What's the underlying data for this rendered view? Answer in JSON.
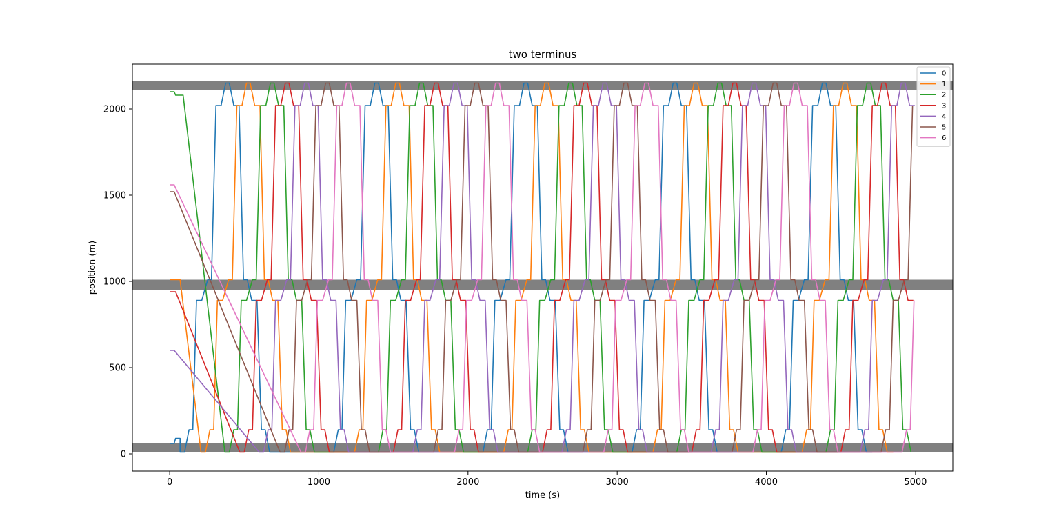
{
  "chart_data": {
    "type": "line",
    "title": "two terminus",
    "xlabel": "time (s)",
    "ylabel": "position (m)",
    "xlim": [
      -250,
      5250
    ],
    "ylim": [
      -100,
      2260
    ],
    "xticks": [
      0,
      1000,
      2000,
      3000,
      4000,
      5000
    ],
    "yticks": [
      0,
      500,
      1000,
      1500,
      2000
    ],
    "legend_location": "top-right",
    "grid": false,
    "bands": [
      {
        "y0": 10,
        "y1": 60,
        "color": "#808080"
      },
      {
        "y0": 950,
        "y1": 1010,
        "color": "#808080"
      },
      {
        "y0": 2110,
        "y1": 2160,
        "color": "#808080"
      }
    ],
    "trip": {
      "period": 1000,
      "stations": [
        10,
        140,
        890,
        1010,
        2020,
        2150
      ],
      "dwell": [
        [
          0,
          30
        ],
        [
          60,
          85
        ],
        [
          110,
          145
        ],
        [
          185,
          210
        ],
        [
          240,
          275
        ],
        [
          305,
          330
        ],
        [
          360,
          395
        ],
        [
          425,
          450
        ],
        [
          480,
          515
        ],
        [
          545,
          570
        ],
        [
          600,
          640
        ]
      ]
    },
    "series": [
      {
        "name": "0",
        "color": "#1f77b4",
        "phase": 0,
        "initial": [
          [
            0,
            60
          ],
          [
            30,
            60
          ],
          [
            40,
            90
          ],
          [
            70,
            90
          ]
        ]
      },
      {
        "name": "1",
        "color": "#ff7f0e",
        "phase": 140,
        "initial": [
          [
            0,
            1010
          ],
          [
            70,
            1010
          ]
        ]
      },
      {
        "name": "2",
        "color": "#2ca02c",
        "phase": 280,
        "initial": [
          [
            0,
            2100
          ],
          [
            30,
            2100
          ],
          [
            40,
            2080
          ],
          [
            90,
            2080
          ]
        ]
      },
      {
        "name": "3",
        "color": "#d62728",
        "phase": 430,
        "initial": [
          [
            0,
            940
          ],
          [
            40,
            940
          ]
        ]
      },
      {
        "name": "4",
        "color": "#9467bd",
        "phase": 570,
        "initial": [
          [
            0,
            600
          ],
          [
            30,
            600
          ]
        ]
      },
      {
        "name": "5",
        "color": "#8c564b",
        "phase": 710,
        "initial": [
          [
            0,
            1520
          ],
          [
            30,
            1520
          ]
        ]
      },
      {
        "name": "6",
        "color": "#e377c2",
        "phase": 850,
        "initial": [
          [
            0,
            1560
          ],
          [
            30,
            1560
          ]
        ]
      }
    ],
    "t_end": 5000
  }
}
